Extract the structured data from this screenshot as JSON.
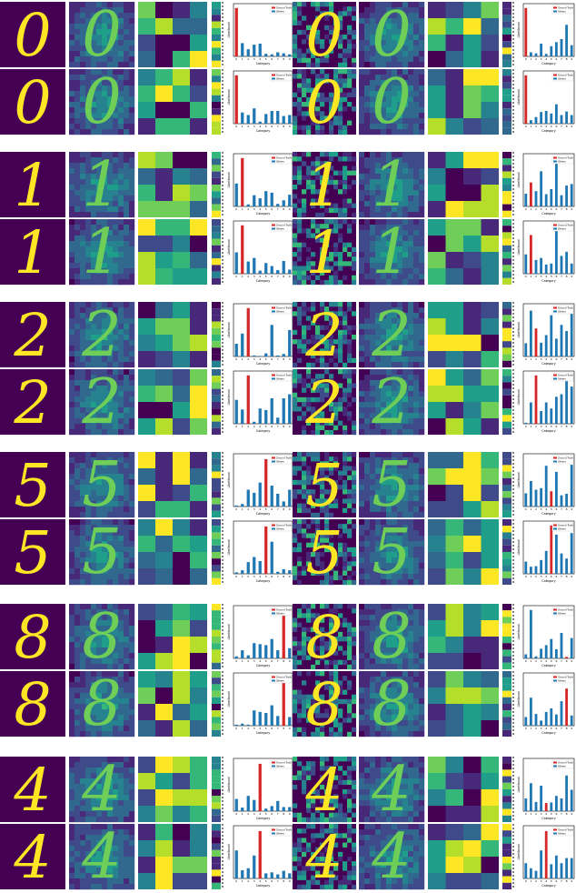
{
  "colors": {
    "viridis": [
      "#440154",
      "#482878",
      "#3e4a89",
      "#31688e",
      "#26828e",
      "#1f9e89",
      "#35b779",
      "#6ece58",
      "#b5de2b",
      "#fde725"
    ],
    "ground_truth": "#d62728",
    "others": "#1f77b4"
  },
  "chart_data": [
    {
      "type": "bar",
      "group": 0,
      "panel": "original",
      "digit": 0,
      "true_class": 0,
      "categories": [
        "0",
        "1",
        "2",
        "3",
        "4",
        "5",
        "6",
        "7",
        "8",
        "9"
      ],
      "values": [
        0.95,
        0.26,
        0.14,
        0.23,
        0.25,
        0.05,
        0.04,
        0.08,
        0.06,
        0.04
      ],
      "xlabel": "Category",
      "ylabel": "Likelihood",
      "legend": [
        "Ground Truth",
        "Others"
      ],
      "legend_position": "top-right"
    },
    {
      "type": "bar",
      "group": 0,
      "panel": "adversarial",
      "digit": 0,
      "true_class": 0,
      "categories": [
        "0",
        "1",
        "2",
        "3",
        "4",
        "5",
        "6",
        "7",
        "8",
        "9"
      ],
      "values": [
        0.95,
        0.08,
        0.06,
        0.25,
        0.05,
        0.2,
        0.28,
        0.34,
        0.62,
        0.22
      ],
      "xlabel": "Category",
      "ylabel": "Likelihood",
      "legend": [
        "Ground Truth",
        "Others"
      ],
      "legend_position": "top-right"
    },
    {
      "type": "bar",
      "group": 0,
      "panel": "original",
      "digit": 0,
      "true_class": 0,
      "categories": [
        "0",
        "1",
        "2",
        "3",
        "4",
        "5",
        "6",
        "7",
        "8",
        "9"
      ],
      "values": [
        0.95,
        0.22,
        0.17,
        0.3,
        0.04,
        0.19,
        0.25,
        0.25,
        0.15,
        0.17
      ],
      "xlabel": "Category",
      "ylabel": "Likelihood",
      "legend": [
        "Ground Truth",
        "Others"
      ],
      "legend_position": "top-right"
    },
    {
      "type": "bar",
      "group": 0,
      "panel": "adversarial",
      "digit": 0,
      "true_class": 0,
      "categories": [
        "0",
        "1",
        "2",
        "3",
        "4",
        "5",
        "6",
        "7",
        "8",
        "9"
      ],
      "values": [
        0.95,
        0.07,
        0.13,
        0.23,
        0.25,
        0.2,
        0.38,
        0.17,
        0.24,
        0.17
      ],
      "xlabel": "Category",
      "ylabel": "Likelihood",
      "legend": [
        "Ground Truth",
        "Others"
      ],
      "legend_position": "top-right"
    },
    {
      "type": "bar",
      "group": 1,
      "panel": "original",
      "digit": 1,
      "true_class": 1,
      "categories": [
        "0",
        "1",
        "2",
        "3",
        "4",
        "5",
        "6",
        "7",
        "8",
        "9"
      ],
      "values": [
        0.45,
        0.95,
        0.04,
        0.22,
        0.16,
        0.3,
        0.27,
        0.05,
        0.12,
        0.23
      ],
      "xlabel": "Category",
      "ylabel": "Likelihood",
      "legend": [
        "Ground Truth",
        "Others"
      ],
      "legend_position": "top-right"
    },
    {
      "type": "bar",
      "group": 1,
      "panel": "adversarial",
      "digit": 1,
      "true_class": 1,
      "categories": [
        "0",
        "1",
        "2",
        "3",
        "4",
        "5",
        "6",
        "7",
        "8",
        "9"
      ],
      "values": [
        0.25,
        0.47,
        0.3,
        0.69,
        0.24,
        0.34,
        0.93,
        0.22,
        0.41,
        0.44
      ],
      "xlabel": "Category",
      "ylabel": "Likelihood",
      "legend": [
        "Ground Truth",
        "Others"
      ],
      "legend_position": "top-right"
    },
    {
      "type": "bar",
      "group": 1,
      "panel": "original",
      "digit": 1,
      "true_class": 1,
      "categories": [
        "0",
        "1",
        "2",
        "3",
        "4",
        "5",
        "6",
        "7",
        "8",
        "9"
      ],
      "values": [
        0.42,
        0.95,
        0.24,
        0.31,
        0.06,
        0.21,
        0.15,
        0.07,
        0.25,
        0.08
      ],
      "xlabel": "Category",
      "ylabel": "Likelihood",
      "legend": [
        "Ground Truth",
        "Others"
      ],
      "legend_position": "top-right"
    },
    {
      "type": "bar",
      "group": 1,
      "panel": "adversarial",
      "digit": 1,
      "true_class": 1,
      "categories": [
        "0",
        "1",
        "2",
        "3",
        "4",
        "5",
        "6",
        "7",
        "8",
        "9"
      ],
      "values": [
        0.38,
        0.76,
        0.27,
        0.31,
        0.18,
        0.2,
        0.93,
        0.35,
        0.43,
        0.2
      ],
      "xlabel": "Category",
      "ylabel": "Likelihood",
      "legend": [
        "Ground Truth",
        "Others"
      ],
      "legend_position": "top-right"
    },
    {
      "type": "bar",
      "group": 2,
      "panel": "original",
      "digit": 2,
      "true_class": 2,
      "categories": [
        "0",
        "1",
        "2",
        "3",
        "4",
        "5",
        "6",
        "7",
        "8",
        "9"
      ],
      "values": [
        0.25,
        0.45,
        0.95,
        0.02,
        0.01,
        0.06,
        0.62,
        0.02,
        0.05,
        0.52
      ],
      "xlabel": "Category",
      "ylabel": "Likelihood",
      "legend": [
        "Ground Truth",
        "Others"
      ],
      "legend_position": "top-right"
    },
    {
      "type": "bar",
      "group": 2,
      "panel": "adversarial",
      "digit": 2,
      "true_class": 2,
      "categories": [
        "0",
        "1",
        "2",
        "3",
        "4",
        "5",
        "6",
        "7",
        "8",
        "9"
      ],
      "values": [
        0.26,
        0.9,
        0.55,
        0.27,
        0.42,
        0.81,
        0.35,
        0.62,
        0.5,
        0.84
      ],
      "xlabel": "Category",
      "ylabel": "Likelihood",
      "legend": [
        "Ground Truth",
        "Others"
      ],
      "legend_position": "top-right"
    },
    {
      "type": "bar",
      "group": 2,
      "panel": "original",
      "digit": 2,
      "true_class": 2,
      "categories": [
        "0",
        "1",
        "2",
        "3",
        "4",
        "5",
        "6",
        "7",
        "8",
        "9"
      ],
      "values": [
        0.47,
        0.28,
        0.95,
        0.04,
        0.3,
        0.27,
        0.5,
        0.12,
        0.5,
        0.58
      ],
      "xlabel": "Category",
      "ylabel": "Likelihood",
      "legend": [
        "Ground Truth",
        "Others"
      ],
      "legend_position": "top-right"
    },
    {
      "type": "bar",
      "group": 2,
      "panel": "adversarial",
      "digit": 2,
      "true_class": 2,
      "categories": [
        "0",
        "1",
        "2",
        "3",
        "4",
        "5",
        "6",
        "7",
        "8",
        "9"
      ],
      "values": [
        0.02,
        0.42,
        0.95,
        0.25,
        0.42,
        0.3,
        0.53,
        0.58,
        0.9,
        0.73
      ],
      "xlabel": "Category",
      "ylabel": "Likelihood",
      "legend": [
        "Ground Truth",
        "Others"
      ],
      "legend_position": "top-right"
    },
    {
      "type": "bar",
      "group": 3,
      "panel": "original",
      "digit": 5,
      "true_class": 5,
      "categories": [
        "0",
        "1",
        "2",
        "3",
        "4",
        "5",
        "6",
        "7",
        "8",
        "9"
      ],
      "values": [
        0.02,
        0.05,
        0.33,
        0.27,
        0.47,
        0.93,
        0.41,
        0.25,
        0.1,
        0.33
      ],
      "xlabel": "Category",
      "ylabel": "Likelihood",
      "legend": [
        "Ground Truth",
        "Others"
      ],
      "legend_position": "top-right"
    },
    {
      "type": "bar",
      "group": 3,
      "panel": "adversarial",
      "digit": 5,
      "true_class": 5,
      "categories": [
        "0",
        "1",
        "2",
        "3",
        "4",
        "5",
        "6",
        "7",
        "8",
        "9"
      ],
      "values": [
        0.26,
        0.5,
        0.33,
        0.36,
        0.8,
        0.3,
        0.68,
        0.22,
        0.25,
        0.82
      ],
      "xlabel": "Category",
      "ylabel": "Likelihood",
      "legend": [
        "Ground Truth",
        "Others"
      ],
      "legend_position": "top-right"
    },
    {
      "type": "bar",
      "group": 3,
      "panel": "original",
      "digit": 5,
      "true_class": 5,
      "categories": [
        "0",
        "1",
        "2",
        "3",
        "4",
        "5",
        "6",
        "7",
        "8",
        "9"
      ],
      "values": [
        0.03,
        0.07,
        0.23,
        0.33,
        0.25,
        0.93,
        0.63,
        0.04,
        0.09,
        0.07
      ],
      "xlabel": "Category",
      "ylabel": "Likelihood",
      "legend": [
        "Ground Truth",
        "Others"
      ],
      "legend_position": "top-right"
    },
    {
      "type": "bar",
      "group": 3,
      "panel": "adversarial",
      "digit": 5,
      "true_class": 5,
      "categories": [
        "0",
        "1",
        "2",
        "3",
        "4",
        "5",
        "6",
        "7",
        "8",
        "9"
      ],
      "values": [
        0.24,
        0.14,
        0.15,
        0.27,
        0.45,
        0.95,
        0.77,
        0.4,
        0.3,
        0.8
      ],
      "xlabel": "Category",
      "ylabel": "Likelihood",
      "legend": [
        "Ground Truth",
        "Others"
      ],
      "legend_position": "top-right"
    },
    {
      "type": "bar",
      "group": 4,
      "panel": "original",
      "digit": 8,
      "true_class": 8,
      "categories": [
        "0",
        "1",
        "2",
        "3",
        "4",
        "5",
        "6",
        "7",
        "8",
        "9"
      ],
      "values": [
        0.04,
        0.16,
        0.06,
        0.3,
        0.28,
        0.26,
        0.38,
        0.16,
        0.93,
        0.2
      ],
      "xlabel": "Category",
      "ylabel": "Likelihood",
      "legend": [
        "Ground Truth",
        "Others"
      ],
      "legend_position": "top-right"
    },
    {
      "type": "bar",
      "group": 4,
      "panel": "adversarial",
      "digit": 8,
      "true_class": 8,
      "categories": [
        "0",
        "1",
        "2",
        "3",
        "4",
        "5",
        "6",
        "7",
        "8",
        "9"
      ],
      "values": [
        0.08,
        0.95,
        0.04,
        0.19,
        0.26,
        0.38,
        0.18,
        0.5,
        0.03,
        0.4
      ],
      "xlabel": "Category",
      "ylabel": "Likelihood",
      "legend": [
        "Ground Truth",
        "Others"
      ],
      "legend_position": "top-right"
    },
    {
      "type": "bar",
      "group": 4,
      "panel": "original",
      "digit": 8,
      "true_class": 8,
      "categories": [
        "0",
        "1",
        "2",
        "3",
        "4",
        "5",
        "6",
        "7",
        "8",
        "9"
      ],
      "values": [
        0.02,
        0.04,
        0.02,
        0.3,
        0.27,
        0.25,
        0.4,
        0.19,
        0.93,
        0.17
      ],
      "xlabel": "Category",
      "ylabel": "Likelihood",
      "legend": [
        "Ground Truth",
        "Others"
      ],
      "legend_position": "top-right"
    },
    {
      "type": "bar",
      "group": 4,
      "panel": "adversarial",
      "digit": 8,
      "true_class": 8,
      "categories": [
        "0",
        "1",
        "2",
        "3",
        "4",
        "5",
        "6",
        "7",
        "8",
        "9"
      ],
      "values": [
        0.17,
        0.55,
        0.23,
        0.1,
        0.27,
        0.34,
        0.22,
        0.48,
        0.73,
        0.2
      ],
      "xlabel": "Category",
      "ylabel": "Likelihood",
      "legend": [
        "Ground Truth",
        "Others"
      ],
      "legend_position": "top-right"
    },
    {
      "type": "bar",
      "group": 5,
      "panel": "original",
      "digit": 4,
      "true_class": 4,
      "categories": [
        "0",
        "1",
        "2",
        "3",
        "4",
        "5",
        "6",
        "7",
        "8",
        "9"
      ],
      "values": [
        0.24,
        0.07,
        0.3,
        0.22,
        0.93,
        0.05,
        0.1,
        0.2,
        0.08,
        0.08
      ],
      "xlabel": "Category",
      "ylabel": "Likelihood",
      "legend": [
        "Ground Truth",
        "Others"
      ],
      "legend_position": "top-right"
    },
    {
      "type": "bar",
      "group": 5,
      "panel": "adversarial",
      "digit": 4,
      "true_class": 4,
      "categories": [
        "0",
        "1",
        "2",
        "3",
        "4",
        "5",
        "6",
        "7",
        "8",
        "9"
      ],
      "values": [
        0.25,
        0.55,
        0.18,
        0.5,
        0.16,
        0.17,
        0.3,
        0.25,
        0.7,
        0.42
      ],
      "xlabel": "Category",
      "ylabel": "Likelihood",
      "legend": [
        "Ground Truth",
        "Others"
      ],
      "legend_position": "top-right"
    },
    {
      "type": "bar",
      "group": 5,
      "panel": "original",
      "digit": 4,
      "true_class": 4,
      "categories": [
        "0",
        "1",
        "2",
        "3",
        "4",
        "5",
        "6",
        "7",
        "8",
        "9"
      ],
      "values": [
        0.55,
        0.16,
        0.2,
        0.45,
        0.93,
        0.1,
        0.12,
        0.08,
        0.15,
        0.1
      ],
      "xlabel": "Category",
      "ylabel": "Likelihood",
      "legend": [
        "Ground Truth",
        "Others"
      ],
      "legend_position": "top-right"
    },
    {
      "type": "bar",
      "group": 5,
      "panel": "adversarial",
      "digit": 4,
      "true_class": 4,
      "categories": [
        "0",
        "1",
        "2",
        "3",
        "4",
        "5",
        "6",
        "7",
        "8",
        "9"
      ],
      "values": [
        0.3,
        0.2,
        0.15,
        0.55,
        0.93,
        0.28,
        0.45,
        0.3,
        0.4,
        0.4
      ],
      "xlabel": "Category",
      "ylabel": "Likelihood",
      "legend": [
        "Ground Truth",
        "Others"
      ],
      "legend_position": "top-right"
    }
  ]
}
